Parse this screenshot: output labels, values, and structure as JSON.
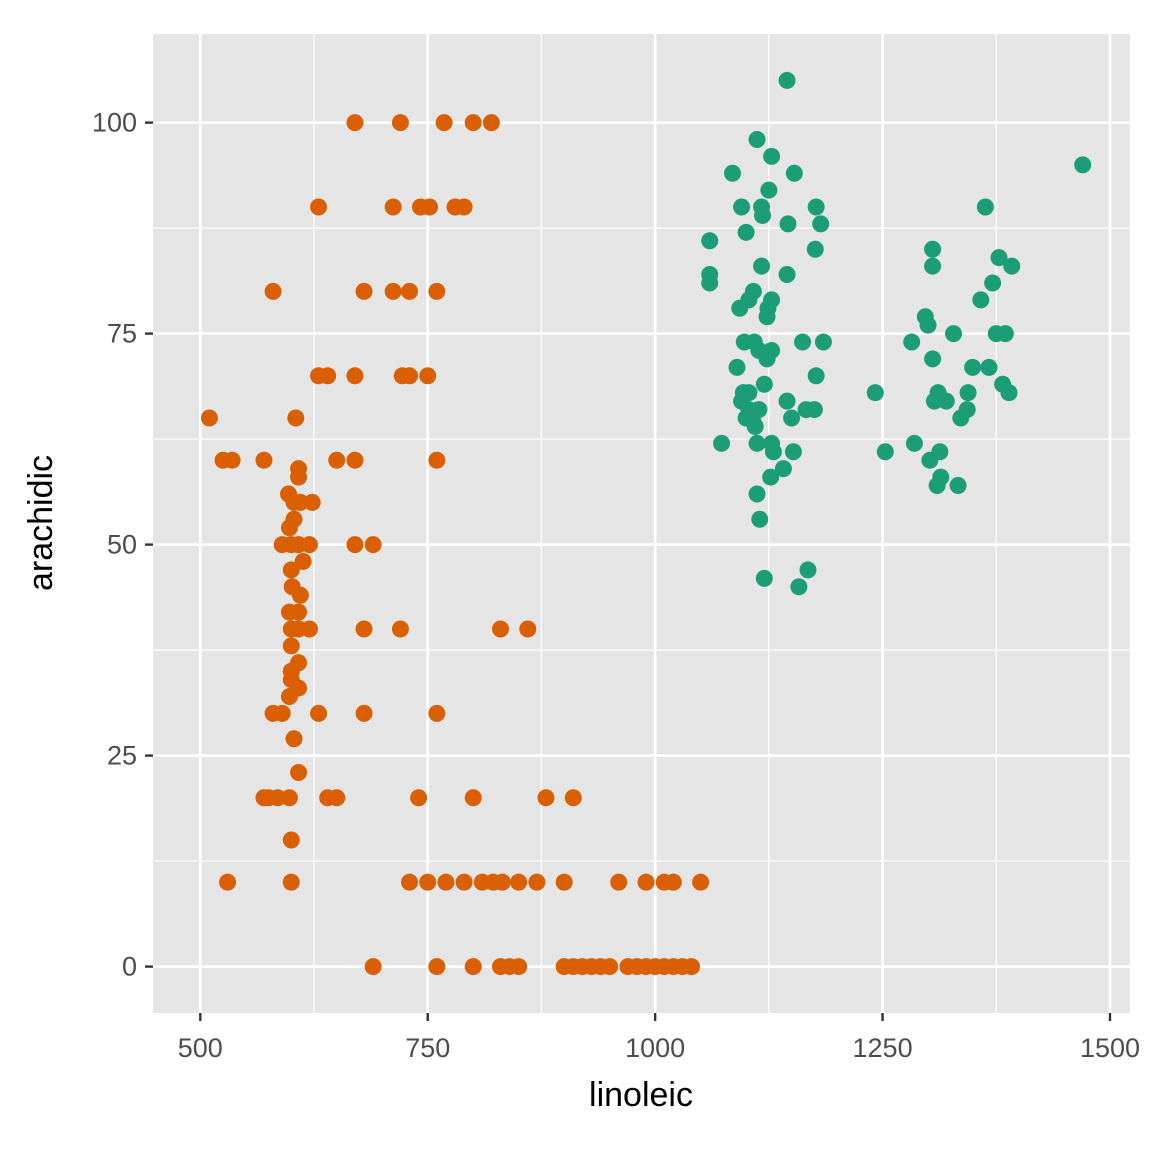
{
  "chart_data": {
    "type": "scatter",
    "title": "",
    "xlabel": "linoleic",
    "ylabel": "arachidic",
    "xlim": [
      448,
      1522
    ],
    "ylim": [
      -5.5,
      110.5
    ],
    "x_ticks": [
      500,
      750,
      1000,
      1250,
      1500
    ],
    "y_ticks": [
      0,
      25,
      50,
      75,
      100
    ],
    "x_tick_labels": [
      "500",
      "750",
      "1000",
      "1250",
      "1500"
    ],
    "y_tick_labels": [
      "0",
      "25",
      "50",
      "75",
      "100"
    ],
    "grid": true,
    "legend": "none",
    "colors": {
      "panel_background": "#e5e5e5",
      "grid": "#ffffff",
      "series_orange": "#d95f02",
      "series_green": "#1b9e77"
    },
    "series": [
      {
        "color": "#d95f02",
        "points": [
          [
            670,
            100
          ],
          [
            720,
            100
          ],
          [
            768,
            100
          ],
          [
            800,
            100
          ],
          [
            820,
            100
          ],
          [
            630,
            90
          ],
          [
            712,
            90
          ],
          [
            742,
            90
          ],
          [
            752,
            90
          ],
          [
            780,
            90
          ],
          [
            790,
            90
          ],
          [
            580,
            80
          ],
          [
            680,
            80
          ],
          [
            712,
            80
          ],
          [
            730,
            80
          ],
          [
            760,
            80
          ],
          [
            630,
            70
          ],
          [
            640,
            70
          ],
          [
            670,
            70
          ],
          [
            722,
            70
          ],
          [
            730,
            70
          ],
          [
            750,
            70
          ],
          [
            510,
            65
          ],
          [
            605,
            65
          ],
          [
            525,
            60
          ],
          [
            535,
            60
          ],
          [
            570,
            60
          ],
          [
            650,
            60
          ],
          [
            670,
            60
          ],
          [
            760,
            60
          ],
          [
            608,
            59
          ],
          [
            608,
            58
          ],
          [
            597,
            56
          ],
          [
            603,
            55
          ],
          [
            610,
            55
          ],
          [
            623,
            55
          ],
          [
            598,
            52
          ],
          [
            603,
            53
          ],
          [
            590,
            50
          ],
          [
            600,
            50
          ],
          [
            608,
            50
          ],
          [
            620,
            50
          ],
          [
            670,
            50
          ],
          [
            690,
            50
          ],
          [
            613,
            48
          ],
          [
            600,
            47
          ],
          [
            601,
            45
          ],
          [
            610,
            44
          ],
          [
            598,
            42
          ],
          [
            608,
            42
          ],
          [
            600,
            40
          ],
          [
            608,
            40
          ],
          [
            620,
            40
          ],
          [
            680,
            40
          ],
          [
            720,
            40
          ],
          [
            830,
            40
          ],
          [
            860,
            40
          ],
          [
            600,
            38
          ],
          [
            608,
            36
          ],
          [
            600,
            35
          ],
          [
            600,
            34
          ],
          [
            608,
            33
          ],
          [
            598,
            32
          ],
          [
            580,
            30
          ],
          [
            590,
            30
          ],
          [
            630,
            30
          ],
          [
            680,
            30
          ],
          [
            760,
            30
          ],
          [
            603,
            27
          ],
          [
            608,
            23
          ],
          [
            570,
            20
          ],
          [
            575,
            20
          ],
          [
            585,
            20
          ],
          [
            598,
            20
          ],
          [
            640,
            20
          ],
          [
            650,
            20
          ],
          [
            740,
            20
          ],
          [
            800,
            20
          ],
          [
            880,
            20
          ],
          [
            910,
            20
          ],
          [
            600,
            15
          ],
          [
            530,
            10
          ],
          [
            600,
            10
          ],
          [
            730,
            10
          ],
          [
            750,
            10
          ],
          [
            770,
            10
          ],
          [
            790,
            10
          ],
          [
            810,
            10
          ],
          [
            822,
            10
          ],
          [
            832,
            10
          ],
          [
            850,
            10
          ],
          [
            870,
            10
          ],
          [
            900,
            10
          ],
          [
            960,
            10
          ],
          [
            990,
            10
          ],
          [
            1010,
            10
          ],
          [
            1020,
            10
          ],
          [
            1050,
            10
          ],
          [
            690,
            0
          ],
          [
            760,
            0
          ],
          [
            800,
            0
          ],
          [
            830,
            0
          ],
          [
            840,
            0
          ],
          [
            850,
            0
          ],
          [
            900,
            0
          ],
          [
            910,
            0
          ],
          [
            920,
            0
          ],
          [
            930,
            0
          ],
          [
            940,
            0
          ],
          [
            950,
            0
          ],
          [
            970,
            0
          ],
          [
            980,
            0
          ],
          [
            990,
            0
          ],
          [
            1000,
            0
          ],
          [
            1010,
            0
          ],
          [
            1020,
            0
          ],
          [
            1030,
            0
          ],
          [
            1040,
            0
          ]
        ]
      },
      {
        "color": "#1b9e77",
        "points": [
          [
            1145,
            105
          ],
          [
            1112,
            98
          ],
          [
            1128,
            96
          ],
          [
            1470,
            95
          ],
          [
            1085,
            94
          ],
          [
            1153,
            94
          ],
          [
            1125,
            92
          ],
          [
            1095,
            90
          ],
          [
            1117,
            90
          ],
          [
            1118,
            89
          ],
          [
            1177,
            90
          ],
          [
            1363,
            90
          ],
          [
            1146,
            88
          ],
          [
            1182,
            88
          ],
          [
            1100,
            87
          ],
          [
            1060,
            86
          ],
          [
            1305,
            85
          ],
          [
            1176,
            85
          ],
          [
            1378,
            84
          ],
          [
            1305,
            83
          ],
          [
            1392,
            83
          ],
          [
            1117,
            83
          ],
          [
            1060,
            82
          ],
          [
            1145,
            82
          ],
          [
            1060,
            81
          ],
          [
            1371,
            81
          ],
          [
            1108,
            80
          ],
          [
            1103,
            79
          ],
          [
            1128,
            79
          ],
          [
            1358,
            79
          ],
          [
            1093,
            78
          ],
          [
            1124,
            78
          ],
          [
            1123,
            77
          ],
          [
            1297,
            77
          ],
          [
            1300,
            76
          ],
          [
            1328,
            75
          ],
          [
            1375,
            75
          ],
          [
            1385,
            75
          ],
          [
            1098,
            74
          ],
          [
            1109,
            74
          ],
          [
            1162,
            74
          ],
          [
            1185,
            74
          ],
          [
            1282,
            74
          ],
          [
            1114,
            73
          ],
          [
            1128,
            73
          ],
          [
            1123,
            72
          ],
          [
            1305,
            72
          ],
          [
            1090,
            71
          ],
          [
            1349,
            71
          ],
          [
            1367,
            71
          ],
          [
            1177,
            70
          ],
          [
            1120,
            69
          ],
          [
            1382,
            69
          ],
          [
            1097,
            68
          ],
          [
            1103,
            68
          ],
          [
            1242,
            68
          ],
          [
            1311,
            68
          ],
          [
            1344,
            68
          ],
          [
            1389,
            68
          ],
          [
            1095,
            67
          ],
          [
            1145,
            67
          ],
          [
            1307,
            67
          ],
          [
            1320,
            67
          ],
          [
            1103,
            66
          ],
          [
            1114,
            66
          ],
          [
            1166,
            66
          ],
          [
            1175,
            66
          ],
          [
            1343,
            66
          ],
          [
            1100,
            65
          ],
          [
            1107,
            65
          ],
          [
            1150,
            65
          ],
          [
            1336,
            65
          ],
          [
            1110,
            64
          ],
          [
            1073,
            62
          ],
          [
            1112,
            62
          ],
          [
            1128,
            62
          ],
          [
            1285,
            62
          ],
          [
            1130,
            61
          ],
          [
            1152,
            61
          ],
          [
            1253,
            61
          ],
          [
            1313,
            61
          ],
          [
            1302,
            60
          ],
          [
            1141,
            59
          ],
          [
            1127,
            58
          ],
          [
            1314,
            58
          ],
          [
            1310,
            57
          ],
          [
            1333,
            57
          ],
          [
            1112,
            56
          ],
          [
            1115,
            53
          ],
          [
            1168,
            47
          ],
          [
            1120,
            46
          ],
          [
            1158,
            45
          ]
        ]
      }
    ]
  }
}
